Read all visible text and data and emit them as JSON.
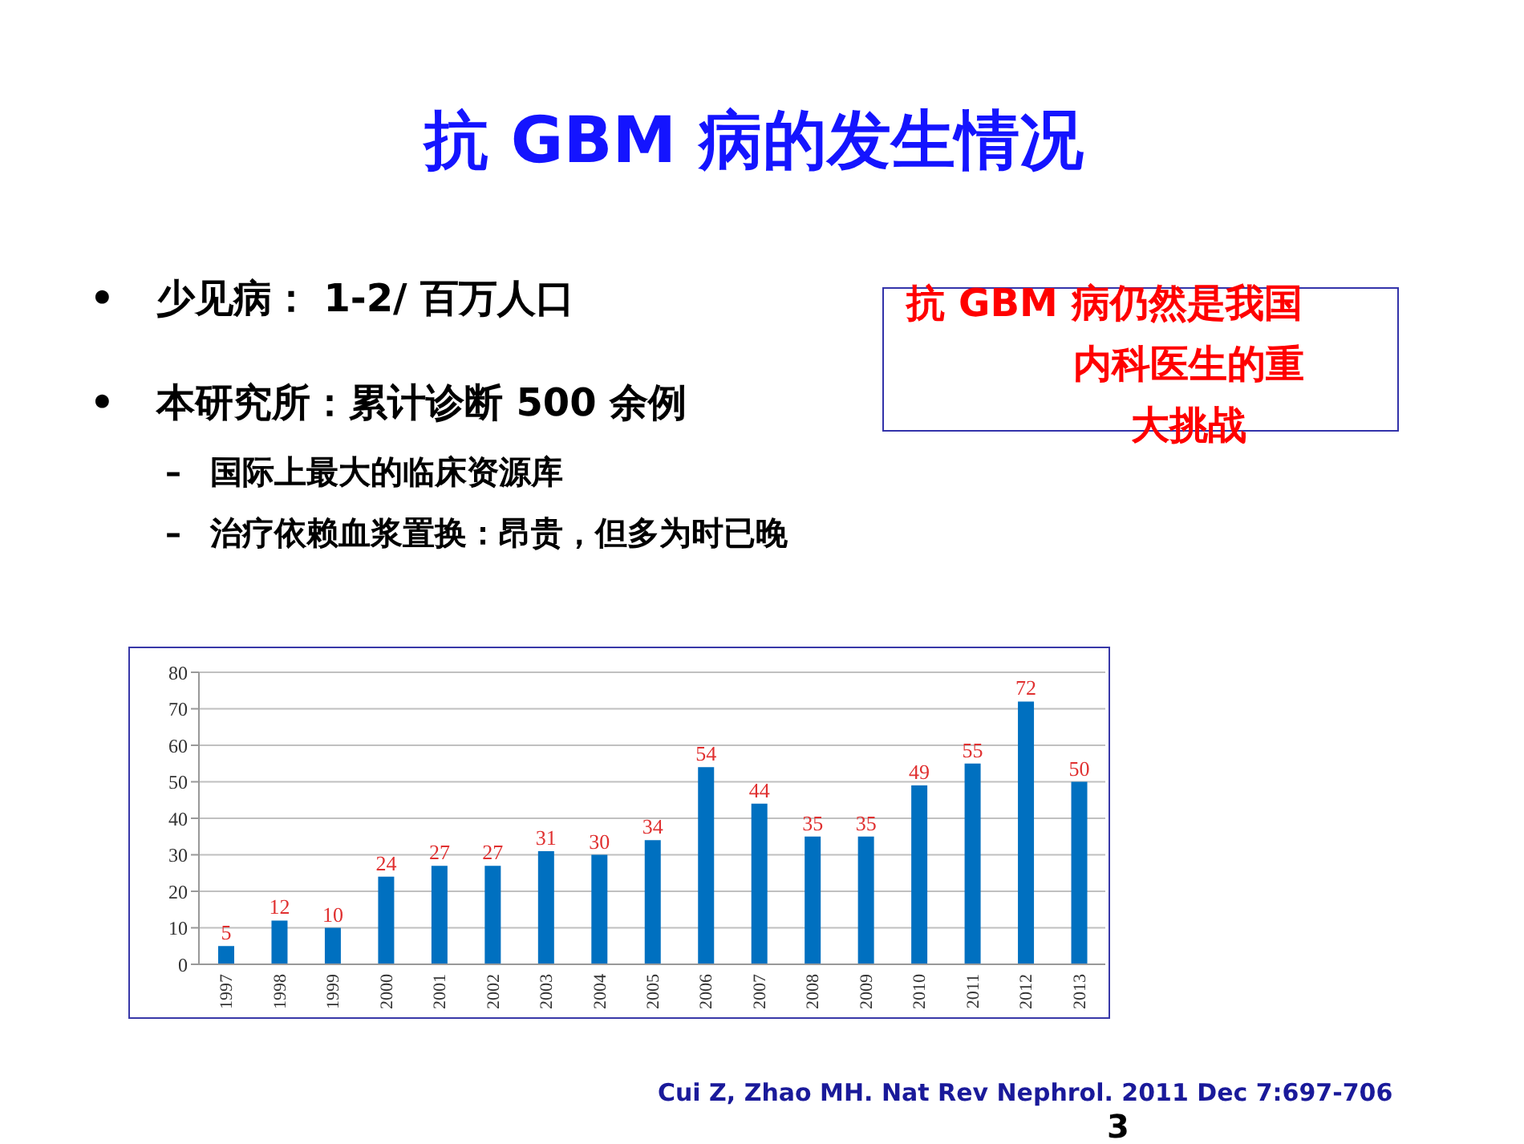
{
  "chart_data": {
    "type": "bar",
    "title": "抗 GBM 病的发生情况",
    "categories": [
      "1997",
      "1998",
      "1999",
      "2000",
      "2001",
      "2002",
      "2003",
      "2004",
      "2005",
      "2006",
      "2007",
      "2008",
      "2009",
      "2010",
      "2011",
      "2012",
      "2013"
    ],
    "values": [
      5,
      12,
      10,
      24,
      27,
      27,
      31,
      30,
      34,
      54,
      44,
      35,
      35,
      49,
      55,
      72,
      50
    ],
    "color": "#0070c0",
    "ylim": [
      0,
      80
    ],
    "yticks": [
      0,
      10,
      20,
      30,
      40,
      50,
      60,
      70,
      80
    ],
    "grid": "y",
    "data_labels": true,
    "annotations": [
      "• 少见病： 1-2/ 百万人口",
      "• 本研究所：累计诊断 500 余例",
      "– 国际上最大的临床资源库",
      "– 治疗依赖血浆置换：昂贵，但多为时已晚",
      "抗 GBM 病仍然是我国内科医生的重大挑战",
      "Cui Z, Zhao MH. Nat Rev Nephrol. 2011 Dec 7:697-706",
      "3"
    ]
  }
}
